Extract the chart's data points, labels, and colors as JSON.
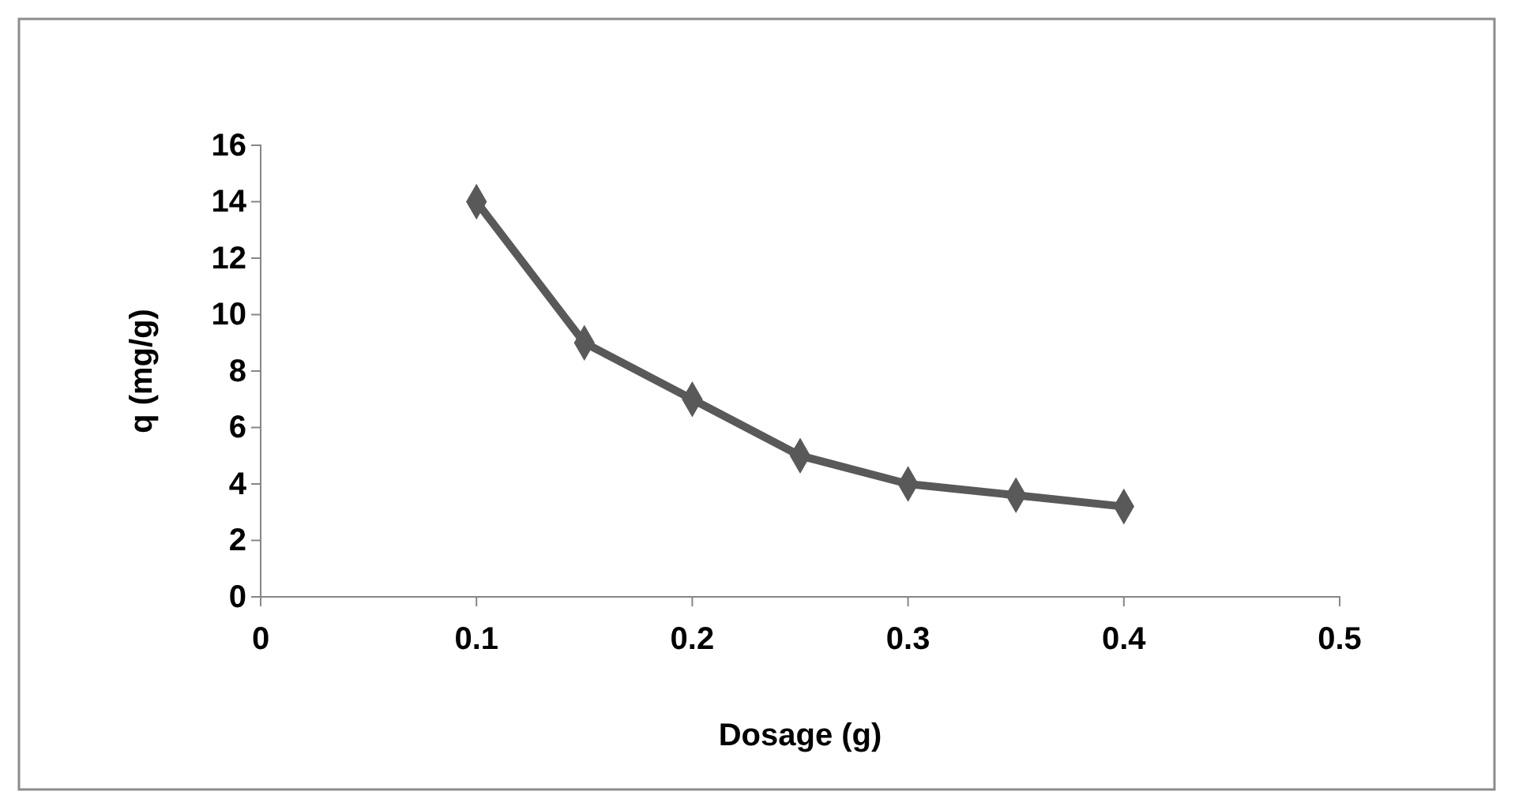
{
  "chart_data": {
    "type": "line",
    "xlabel": "Dosage (g)",
    "ylabel": "q (mg/g)",
    "x": [
      0.1,
      0.15,
      0.2,
      0.25,
      0.3,
      0.35,
      0.4
    ],
    "series": [
      {
        "color": "#595959",
        "values": [
          14,
          9,
          7,
          5,
          4,
          3.6,
          3.2
        ]
      }
    ],
    "xlim": [
      0,
      0.5
    ],
    "xticks": [
      0,
      0.1,
      0.2,
      0.3,
      0.4,
      0.5
    ],
    "ylim": [
      0,
      16
    ],
    "yticks": [
      0,
      2,
      4,
      6,
      8,
      10,
      12,
      14,
      16
    ],
    "grid": false,
    "marker": "diamond",
    "line_style": "solid"
  }
}
